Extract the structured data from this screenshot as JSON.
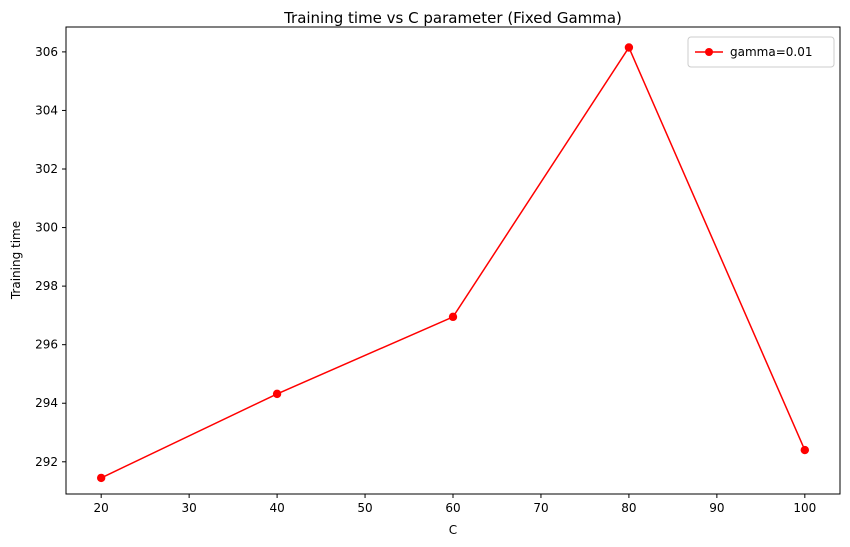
{
  "chart_data": {
    "type": "line",
    "title": "Training time vs C parameter (Fixed Gamma)",
    "xlabel": "C",
    "ylabel": "Training time",
    "x": [
      20,
      40,
      60,
      80,
      100
    ],
    "series": [
      {
        "name": "gamma=0.01",
        "color": "#ff0000",
        "marker": "circle",
        "values": [
          291.45,
          294.32,
          296.95,
          306.15,
          292.4
        ]
      }
    ],
    "xlim": [
      16,
      104
    ],
    "ylim": [
      290.9,
      306.85
    ],
    "xticks": [
      20,
      30,
      40,
      50,
      60,
      70,
      80,
      90,
      100
    ],
    "yticks": [
      292,
      294,
      296,
      298,
      300,
      302,
      304,
      306
    ],
    "grid": false,
    "legend_position": "top-right"
  }
}
